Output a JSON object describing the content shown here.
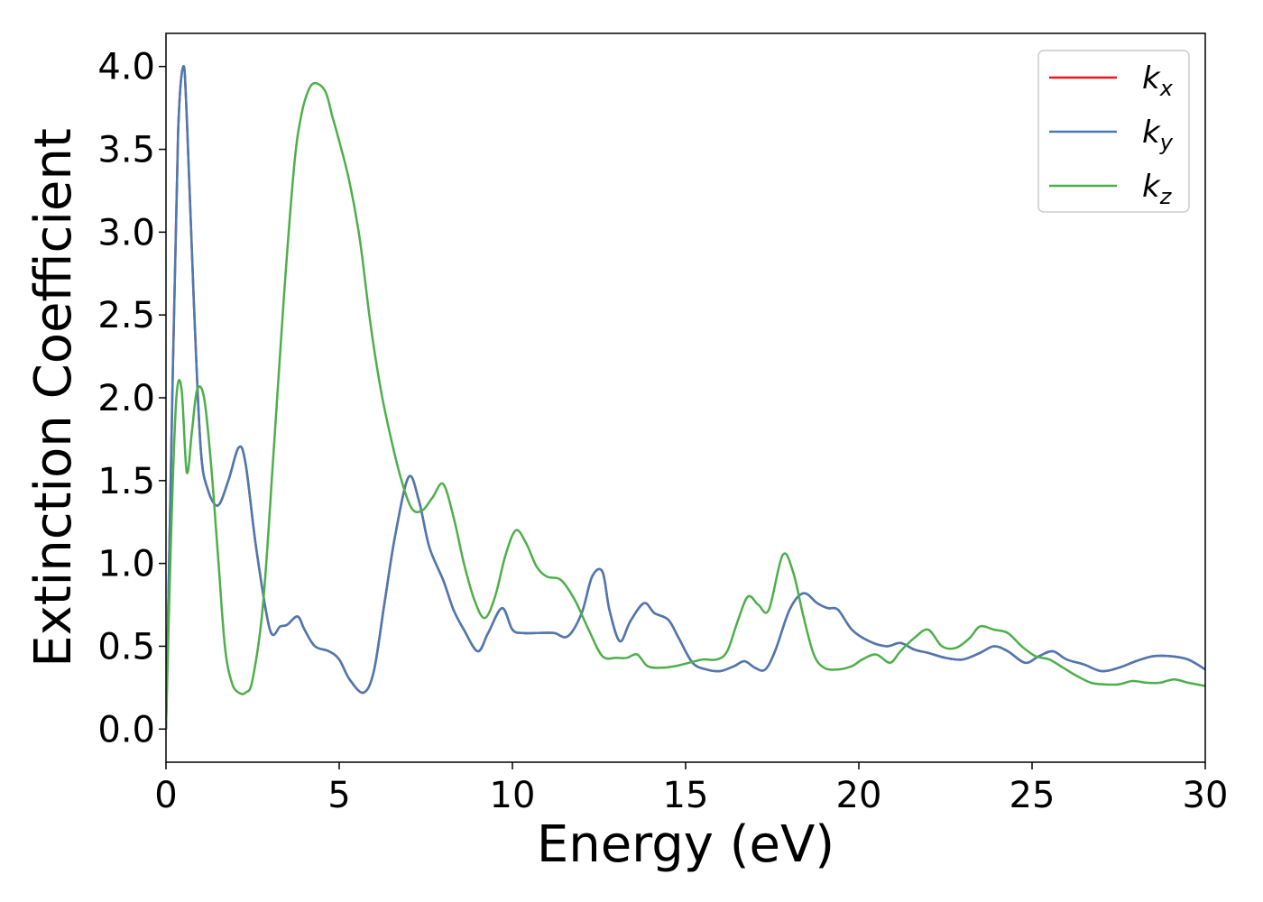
{
  "chart_data": {
    "type": "line",
    "title": "",
    "xlabel": "Energy (eV)",
    "ylabel": "Extinction Coefficient",
    "xlim": [
      0,
      30
    ],
    "ylim": [
      -0.2,
      4.2
    ],
    "xticks": [
      0,
      5,
      10,
      15,
      20,
      25,
      30
    ],
    "yticks": [
      0.0,
      0.5,
      1.0,
      1.5,
      2.0,
      2.5,
      3.0,
      3.5,
      4.0
    ],
    "xtick_labels": [
      "0",
      "5",
      "10",
      "15",
      "20",
      "25",
      "30"
    ],
    "ytick_labels": [
      "0.0",
      "0.5",
      "1.0",
      "1.5",
      "2.0",
      "2.5",
      "3.0",
      "3.5",
      "4.0"
    ],
    "grid": false,
    "legend_position": "top-right",
    "series": [
      {
        "name": "k",
        "subscript": "x",
        "color": "#e41a1c",
        "x": [
          0,
          0.2,
          0.35,
          0.5,
          0.6,
          0.8,
          1.0,
          1.2,
          1.5,
          1.8,
          2.1,
          2.3,
          2.6,
          3.0,
          3.3,
          3.5,
          3.8,
          4.0,
          4.3,
          4.7,
          5.0,
          5.3,
          5.7,
          6.0,
          6.3,
          6.6,
          7.0,
          7.3,
          7.6,
          8.0,
          8.3,
          8.6,
          9.0,
          9.3,
          9.7,
          10.0,
          10.3,
          10.7,
          11.2,
          11.6,
          12.0,
          12.3,
          12.6,
          12.8,
          13.1,
          13.4,
          13.8,
          14.1,
          14.5,
          14.8,
          15.2,
          15.6,
          16.0,
          16.4,
          16.7,
          17.0,
          17.3,
          17.6,
          18.0,
          18.4,
          18.8,
          19.1,
          19.4,
          19.8,
          20.3,
          20.8,
          21.2,
          21.6,
          22.0,
          22.5,
          23.0,
          23.5,
          23.9,
          24.3,
          24.8,
          25.2,
          25.6,
          26.0,
          26.5,
          27.0,
          27.5,
          28.0,
          28.5,
          29.0,
          29.5,
          30.0
        ],
        "y": [
          0.0,
          2.2,
          3.6,
          4.0,
          3.7,
          2.6,
          1.7,
          1.45,
          1.35,
          1.5,
          1.7,
          1.6,
          1.1,
          0.6,
          0.62,
          0.63,
          0.68,
          0.6,
          0.5,
          0.47,
          0.42,
          0.3,
          0.22,
          0.35,
          0.75,
          1.15,
          1.52,
          1.38,
          1.1,
          0.9,
          0.72,
          0.6,
          0.47,
          0.58,
          0.73,
          0.6,
          0.58,
          0.58,
          0.58,
          0.56,
          0.7,
          0.92,
          0.95,
          0.72,
          0.53,
          0.65,
          0.76,
          0.7,
          0.66,
          0.55,
          0.4,
          0.36,
          0.35,
          0.38,
          0.41,
          0.37,
          0.36,
          0.48,
          0.72,
          0.82,
          0.76,
          0.73,
          0.72,
          0.6,
          0.53,
          0.5,
          0.52,
          0.48,
          0.46,
          0.43,
          0.42,
          0.46,
          0.5,
          0.47,
          0.4,
          0.44,
          0.47,
          0.42,
          0.39,
          0.35,
          0.37,
          0.41,
          0.44,
          0.44,
          0.42,
          0.36
        ]
      },
      {
        "name": "k",
        "subscript": "y",
        "color": "#4a7ab3",
        "x": [
          0,
          0.2,
          0.35,
          0.5,
          0.6,
          0.8,
          1.0,
          1.2,
          1.5,
          1.8,
          2.1,
          2.3,
          2.6,
          3.0,
          3.3,
          3.5,
          3.8,
          4.0,
          4.3,
          4.7,
          5.0,
          5.3,
          5.7,
          6.0,
          6.3,
          6.6,
          7.0,
          7.3,
          7.6,
          8.0,
          8.3,
          8.6,
          9.0,
          9.3,
          9.7,
          10.0,
          10.3,
          10.7,
          11.2,
          11.6,
          12.0,
          12.3,
          12.6,
          12.8,
          13.1,
          13.4,
          13.8,
          14.1,
          14.5,
          14.8,
          15.2,
          15.6,
          16.0,
          16.4,
          16.7,
          17.0,
          17.3,
          17.6,
          18.0,
          18.4,
          18.8,
          19.1,
          19.4,
          19.8,
          20.3,
          20.8,
          21.2,
          21.6,
          22.0,
          22.5,
          23.0,
          23.5,
          23.9,
          24.3,
          24.8,
          25.2,
          25.6,
          26.0,
          26.5,
          27.0,
          27.5,
          28.0,
          28.5,
          29.0,
          29.5,
          30.0
        ],
        "y": [
          0.0,
          2.2,
          3.6,
          4.0,
          3.7,
          2.6,
          1.7,
          1.45,
          1.35,
          1.5,
          1.7,
          1.6,
          1.1,
          0.6,
          0.62,
          0.63,
          0.68,
          0.6,
          0.5,
          0.47,
          0.42,
          0.3,
          0.22,
          0.35,
          0.75,
          1.15,
          1.52,
          1.38,
          1.1,
          0.9,
          0.72,
          0.6,
          0.47,
          0.58,
          0.73,
          0.6,
          0.58,
          0.58,
          0.58,
          0.56,
          0.7,
          0.92,
          0.95,
          0.72,
          0.53,
          0.65,
          0.76,
          0.7,
          0.66,
          0.55,
          0.4,
          0.36,
          0.35,
          0.38,
          0.41,
          0.37,
          0.36,
          0.48,
          0.72,
          0.82,
          0.76,
          0.73,
          0.72,
          0.6,
          0.53,
          0.5,
          0.52,
          0.48,
          0.46,
          0.43,
          0.42,
          0.46,
          0.5,
          0.47,
          0.4,
          0.44,
          0.47,
          0.42,
          0.39,
          0.35,
          0.37,
          0.41,
          0.44,
          0.44,
          0.42,
          0.36
        ]
      },
      {
        "name": "k",
        "subscript": "z",
        "color": "#4daf4a",
        "x": [
          0,
          0.15,
          0.3,
          0.45,
          0.6,
          0.75,
          0.9,
          1.1,
          1.3,
          1.5,
          1.7,
          1.9,
          2.1,
          2.3,
          2.5,
          2.8,
          3.1,
          3.4,
          3.7,
          3.9,
          4.1,
          4.3,
          4.6,
          4.8,
          5.0,
          5.3,
          5.6,
          5.9,
          6.2,
          6.5,
          6.8,
          7.1,
          7.4,
          7.7,
          8.0,
          8.3,
          8.6,
          8.9,
          9.2,
          9.5,
          9.8,
          10.1,
          10.4,
          10.7,
          11.0,
          11.4,
          11.8,
          12.2,
          12.6,
          13.0,
          13.3,
          13.6,
          13.9,
          14.3,
          14.7,
          15.1,
          15.5,
          15.9,
          16.2,
          16.5,
          16.8,
          17.1,
          17.4,
          17.8,
          18.1,
          18.4,
          18.7,
          19.0,
          19.4,
          19.8,
          20.1,
          20.5,
          20.9,
          21.2,
          21.6,
          22.0,
          22.4,
          22.8,
          23.2,
          23.5,
          23.9,
          24.3,
          24.7,
          25.1,
          25.5,
          25.9,
          26.3,
          26.7,
          27.1,
          27.5,
          27.9,
          28.3,
          28.7,
          29.1,
          29.5,
          30.0
        ],
        "y": [
          0.0,
          1.2,
          2.0,
          2.05,
          1.55,
          1.8,
          2.05,
          2.0,
          1.6,
          1.05,
          0.5,
          0.28,
          0.22,
          0.22,
          0.3,
          0.75,
          1.65,
          2.6,
          3.4,
          3.7,
          3.85,
          3.9,
          3.85,
          3.7,
          3.55,
          3.3,
          2.95,
          2.45,
          2.05,
          1.75,
          1.5,
          1.33,
          1.32,
          1.4,
          1.48,
          1.28,
          1.0,
          0.78,
          0.67,
          0.8,
          1.05,
          1.2,
          1.12,
          0.98,
          0.92,
          0.9,
          0.78,
          0.6,
          0.44,
          0.43,
          0.43,
          0.45,
          0.38,
          0.37,
          0.38,
          0.4,
          0.42,
          0.42,
          0.47,
          0.65,
          0.8,
          0.75,
          0.72,
          1.05,
          0.95,
          0.68,
          0.45,
          0.37,
          0.36,
          0.38,
          0.42,
          0.45,
          0.4,
          0.47,
          0.55,
          0.6,
          0.5,
          0.49,
          0.55,
          0.62,
          0.6,
          0.58,
          0.5,
          0.44,
          0.42,
          0.37,
          0.32,
          0.28,
          0.27,
          0.27,
          0.29,
          0.28,
          0.28,
          0.3,
          0.28,
          0.26
        ]
      }
    ]
  }
}
